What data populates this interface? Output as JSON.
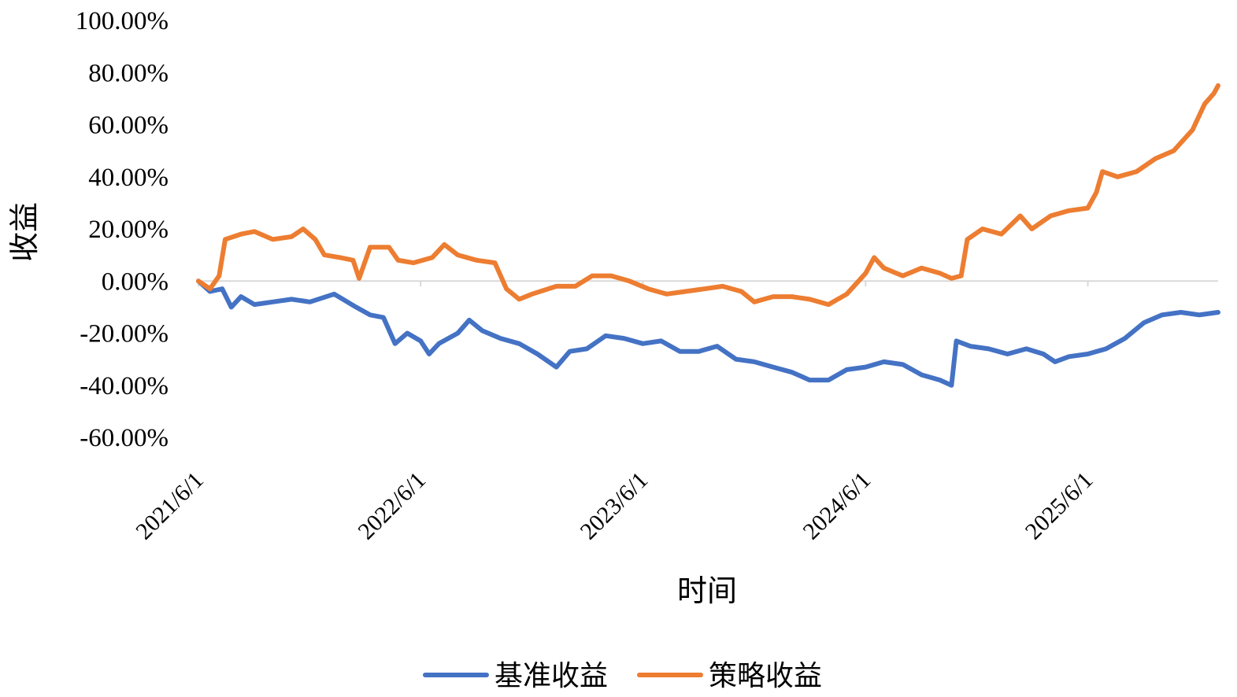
{
  "chart_data": {
    "type": "line",
    "title": "",
    "xlabel": "时间",
    "ylabel": "收益",
    "x_axis": {
      "start": "2021/6/1",
      "end": "2026/1/1",
      "tick_labels": [
        "2021/6/1",
        "2022/6/1",
        "2023/6/1",
        "2024/6/1",
        "2025/6/1"
      ]
    },
    "y_axis": {
      "min": -60,
      "max": 100,
      "tick_values": [
        100,
        80,
        60,
        40,
        20,
        0,
        -20,
        -40,
        -60
      ],
      "tick_labels": [
        "100.00%",
        "80.00%",
        "60.00%",
        "40.00%",
        "20.00%",
        "0.00%",
        "-20.00%",
        "-40.00%",
        "-60.00%"
      ]
    },
    "grid": false,
    "legend_position": "bottom",
    "series": [
      {
        "name": "基准收益",
        "color": "#4472C4",
        "points": [
          [
            "2021/6/1",
            0
          ],
          [
            "2021/6/20",
            -4
          ],
          [
            "2021/7/10",
            -3
          ],
          [
            "2021/7/25",
            -10
          ],
          [
            "2021/8/10",
            -6
          ],
          [
            "2021/9/1",
            -9
          ],
          [
            "2021/10/1",
            -8
          ],
          [
            "2021/11/1",
            -7
          ],
          [
            "2021/12/1",
            -8
          ],
          [
            "2022/1/10",
            -5
          ],
          [
            "2022/2/15",
            -10
          ],
          [
            "2022/3/10",
            -13
          ],
          [
            "2022/4/1",
            -14
          ],
          [
            "2022/4/20",
            -24
          ],
          [
            "2022/5/10",
            -20
          ],
          [
            "2022/6/1",
            -23
          ],
          [
            "2022/6/15",
            -28
          ],
          [
            "2022/7/1",
            -24
          ],
          [
            "2022/8/1",
            -20
          ],
          [
            "2022/8/20",
            -15
          ],
          [
            "2022/9/10",
            -19
          ],
          [
            "2022/10/10",
            -22
          ],
          [
            "2022/11/10",
            -24
          ],
          [
            "2022/12/10",
            -28
          ],
          [
            "2023/1/10",
            -33
          ],
          [
            "2023/2/1",
            -27
          ],
          [
            "2023/3/1",
            -26
          ],
          [
            "2023/4/1",
            -21
          ],
          [
            "2023/5/1",
            -22
          ],
          [
            "2023/6/1",
            -24
          ],
          [
            "2023/7/1",
            -23
          ],
          [
            "2023/8/1",
            -27
          ],
          [
            "2023/9/1",
            -27
          ],
          [
            "2023/10/1",
            -25
          ],
          [
            "2023/11/1",
            -30
          ],
          [
            "2023/12/1",
            -31
          ],
          [
            "2024/1/1",
            -33
          ],
          [
            "2024/2/1",
            -35
          ],
          [
            "2024/3/1",
            -38
          ],
          [
            "2024/4/1",
            -38
          ],
          [
            "2024/5/1",
            -34
          ],
          [
            "2024/6/1",
            -33
          ],
          [
            "2024/7/1",
            -31
          ],
          [
            "2024/8/1",
            -32
          ],
          [
            "2024/9/1",
            -36
          ],
          [
            "2024/10/1",
            -38
          ],
          [
            "2024/10/20",
            -40
          ],
          [
            "2024/10/28",
            -23
          ],
          [
            "2024/11/20",
            -25
          ],
          [
            "2024/12/20",
            -26
          ],
          [
            "2025/1/20",
            -28
          ],
          [
            "2025/2/20",
            -26
          ],
          [
            "2025/3/20",
            -28
          ],
          [
            "2025/4/8",
            -31
          ],
          [
            "2025/5/1",
            -29
          ],
          [
            "2025/6/1",
            -28
          ],
          [
            "2025/7/1",
            -26
          ],
          [
            "2025/8/1",
            -22
          ],
          [
            "2025/9/1",
            -16
          ],
          [
            "2025/10/1",
            -13
          ],
          [
            "2025/11/1",
            -12
          ],
          [
            "2025/12/1",
            -13
          ],
          [
            "2026/1/1",
            -12
          ]
        ]
      },
      {
        "name": "策略收益",
        "color": "#ED7D31",
        "points": [
          [
            "2021/6/1",
            0
          ],
          [
            "2021/6/20",
            -3
          ],
          [
            "2021/7/5",
            2
          ],
          [
            "2021/7/15",
            16
          ],
          [
            "2021/8/10",
            18
          ],
          [
            "2021/9/1",
            19
          ],
          [
            "2021/10/1",
            16
          ],
          [
            "2021/11/1",
            17
          ],
          [
            "2021/11/20",
            20
          ],
          [
            "2021/12/10",
            16
          ],
          [
            "2021/12/25",
            10
          ],
          [
            "2022/1/20",
            9
          ],
          [
            "2022/2/10",
            8
          ],
          [
            "2022/2/20",
            1
          ],
          [
            "2022/3/10",
            13
          ],
          [
            "2022/4/10",
            13
          ],
          [
            "2022/4/25",
            8
          ],
          [
            "2022/5/20",
            7
          ],
          [
            "2022/6/20",
            9
          ],
          [
            "2022/7/10",
            14
          ],
          [
            "2022/8/1",
            10
          ],
          [
            "2022/9/1",
            8
          ],
          [
            "2022/10/1",
            7
          ],
          [
            "2022/10/20",
            -3
          ],
          [
            "2022/11/10",
            -7
          ],
          [
            "2022/12/1",
            -5
          ],
          [
            "2023/1/10",
            -2
          ],
          [
            "2023/2/10",
            -2
          ],
          [
            "2023/3/10",
            2
          ],
          [
            "2023/4/10",
            2
          ],
          [
            "2023/5/10",
            0
          ],
          [
            "2023/6/10",
            -3
          ],
          [
            "2023/7/10",
            -5
          ],
          [
            "2023/8/10",
            -4
          ],
          [
            "2023/9/10",
            -3
          ],
          [
            "2023/10/10",
            -2
          ],
          [
            "2023/11/10",
            -4
          ],
          [
            "2023/12/1",
            -8
          ],
          [
            "2024/1/1",
            -6
          ],
          [
            "2024/2/1",
            -6
          ],
          [
            "2024/3/1",
            -7
          ],
          [
            "2024/4/1",
            -9
          ],
          [
            "2024/5/1",
            -5
          ],
          [
            "2024/6/1",
            3
          ],
          [
            "2024/6/15",
            9
          ],
          [
            "2024/7/1",
            5
          ],
          [
            "2024/8/1",
            2
          ],
          [
            "2024/9/1",
            5
          ],
          [
            "2024/10/1",
            3
          ],
          [
            "2024/10/20",
            1
          ],
          [
            "2024/11/5",
            2
          ],
          [
            "2024/11/15",
            16
          ],
          [
            "2024/12/10",
            20
          ],
          [
            "2025/1/10",
            18
          ],
          [
            "2025/2/10",
            25
          ],
          [
            "2025/3/1",
            20
          ],
          [
            "2025/4/1",
            25
          ],
          [
            "2025/5/1",
            27
          ],
          [
            "2025/6/1",
            28
          ],
          [
            "2025/6/15",
            34
          ],
          [
            "2025/6/25",
            42
          ],
          [
            "2025/7/20",
            40
          ],
          [
            "2025/8/20",
            42
          ],
          [
            "2025/9/20",
            47
          ],
          [
            "2025/10/20",
            50
          ],
          [
            "2025/11/20",
            58
          ],
          [
            "2025/12/10",
            68
          ],
          [
            "2025/12/25",
            72
          ],
          [
            "2026/1/1",
            75
          ]
        ]
      }
    ]
  }
}
